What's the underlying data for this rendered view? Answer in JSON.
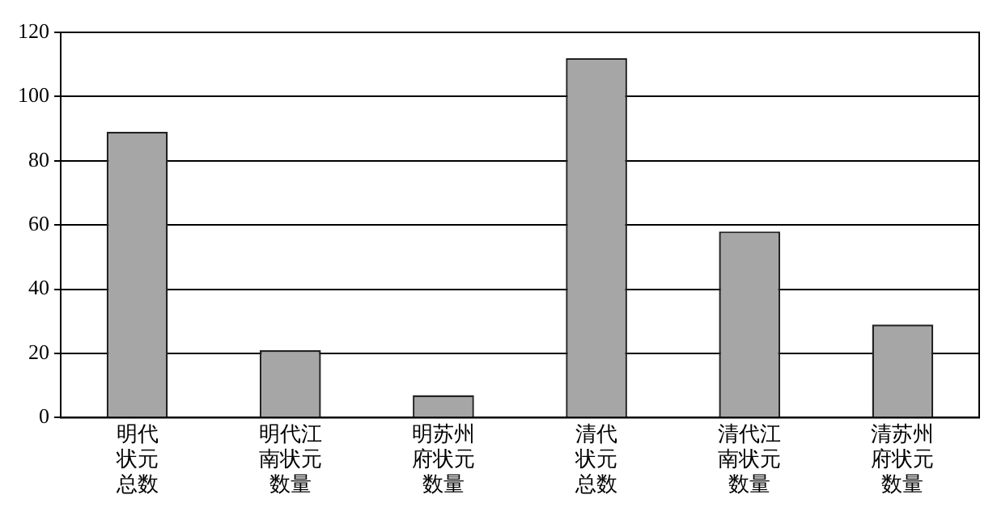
{
  "chart_data": {
    "type": "bar",
    "categories": [
      "明代状元总数",
      "明代江南状元数量",
      "明苏州府状元数量",
      "清代状元总数",
      "清代江南状元数量",
      "清苏州府状元数量"
    ],
    "values": [
      89,
      21,
      7,
      112,
      58,
      29
    ],
    "color": "#a6a6a6",
    "ylim": [
      0,
      120
    ],
    "yticks": [
      0,
      20,
      40,
      60,
      80,
      100,
      120
    ],
    "grid": "y",
    "legend": false
  }
}
